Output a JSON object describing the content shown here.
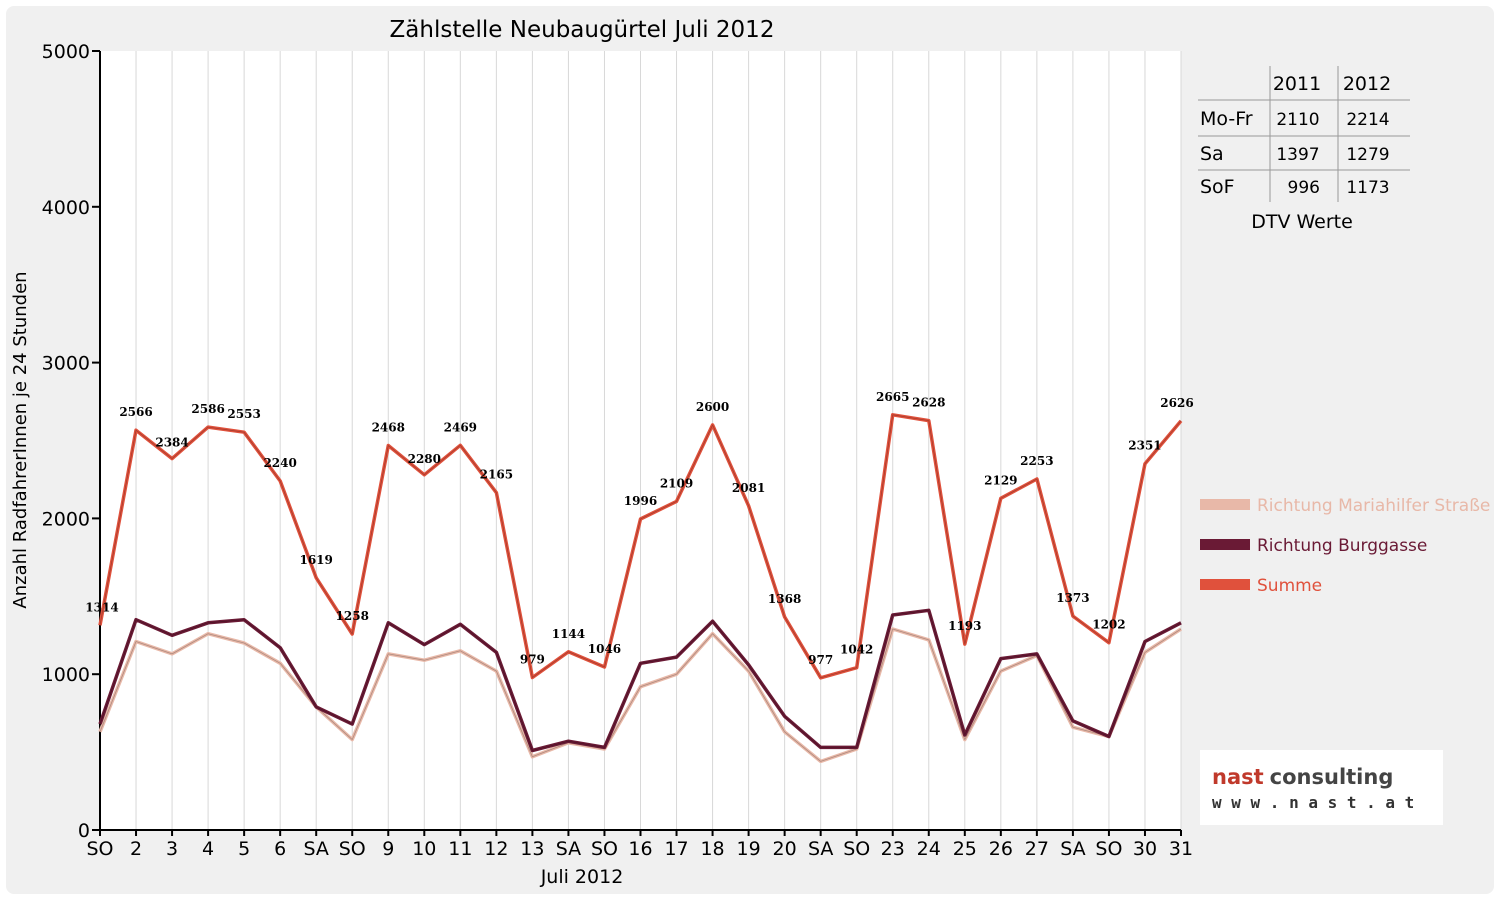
{
  "chart_data": {
    "type": "line",
    "title": "Zählstelle Neubaugürtel Juli 2012",
    "xlabel": "Juli 2012",
    "ylabel": "Anzahl RadfahrerInnen je 24 Stunden",
    "ylim": [
      0,
      5000
    ],
    "yticks": [
      0,
      1000,
      2000,
      3000,
      4000,
      5000
    ],
    "categories": [
      "SO",
      "2",
      "3",
      "4",
      "5",
      "6",
      "SA",
      "SO",
      "9",
      "10",
      "11",
      "12",
      "13",
      "SA",
      "SO",
      "16",
      "17",
      "18",
      "19",
      "20",
      "SA",
      "SO",
      "23",
      "24",
      "25",
      "26",
      "27",
      "SA",
      "SO",
      "30",
      "31"
    ],
    "highlight_color": "#e00000",
    "series": [
      {
        "name": "Richtung Mariahilfer Straße",
        "color": "#e8b8a8",
        "values": [
          630,
          1210,
          1130,
          1260,
          1200,
          1070,
          790,
          580,
          1130,
          1090,
          1150,
          1020,
          470,
          560,
          520,
          920,
          1000,
          1260,
          1020,
          630,
          440,
          520,
          1290,
          1220,
          580,
          1020,
          1120,
          660,
          600,
          1140,
          1290
        ]
      },
      {
        "name": "Richtung Burggasse",
        "color": "#6a1a35",
        "values": [
          680,
          1350,
          1250,
          1330,
          1350,
          1170,
          790,
          680,
          1330,
          1190,
          1320,
          1140,
          510,
          570,
          530,
          1070,
          1110,
          1340,
          1060,
          730,
          530,
          530,
          1380,
          1410,
          610,
          1100,
          1130,
          700,
          600,
          1210,
          1330
        ]
      },
      {
        "name": "Summe",
        "color": "#e0513c",
        "values": [
          1314,
          2566,
          2384,
          2586,
          2553,
          2240,
          1619,
          1258,
          2468,
          2280,
          2469,
          2165,
          979,
          1144,
          1046,
          1996,
          2109,
          2600,
          2081,
          1368,
          977,
          1042,
          2665,
          2628,
          1193,
          2129,
          2253,
          1373,
          1202,
          2351,
          2626
        ]
      }
    ],
    "summe_labels": [
      "1314",
      "2566",
      "2384",
      "2586",
      "2553",
      "2240",
      "1619",
      "1258",
      "2468",
      "2280",
      "2469",
      "2165",
      "979",
      "1144",
      "1046",
      "1996",
      "2109",
      "2600",
      "2081",
      "1368",
      "977",
      "1042",
      "2665",
      "2628",
      "1193",
      "2129",
      "2253",
      "1373",
      "1202",
      "2351",
      "2626"
    ]
  },
  "dtv_table": {
    "headers": [
      "",
      "2011",
      "2012"
    ],
    "rows": [
      {
        "label": "Mo-Fr",
        "v2011": "2110",
        "v2012": "2214"
      },
      {
        "label": "Sa",
        "v2011": "1397",
        "v2012": "1279"
      },
      {
        "label": "SoF",
        "v2011": "996",
        "v2012": "1173"
      }
    ],
    "caption": "DTV Werte"
  },
  "logo": {
    "name_part1": "nast",
    "name_part2": "consulting",
    "url": "w w w . n a s t . a t",
    "color1": "#c0392b",
    "color2": "#444444"
  }
}
